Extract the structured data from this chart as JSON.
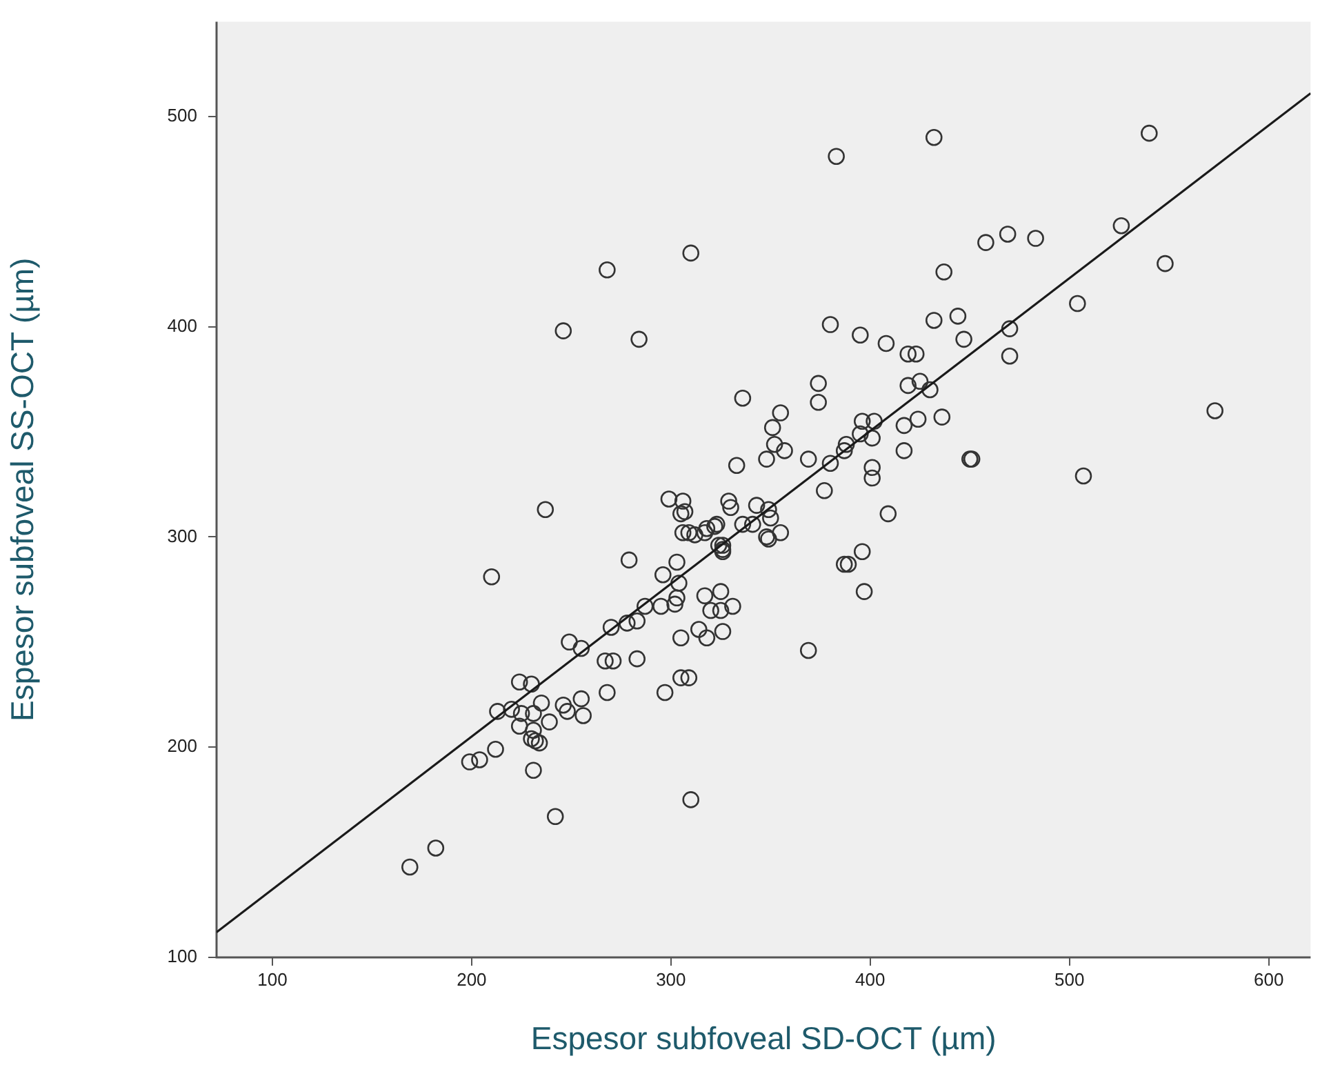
{
  "chart_data": {
    "type": "scatter",
    "xlabel": "Espesor subfoveal SD-OCT (µm)",
    "ylabel": "Espesor subfoveal SS-OCT (µm)",
    "xlim": [
      72,
      621
    ],
    "ylim": [
      100,
      545
    ],
    "xticks": [
      100,
      200,
      300,
      400,
      500,
      600
    ],
    "yticks": [
      100,
      200,
      300,
      400,
      500
    ],
    "grid": false,
    "legend": false,
    "marker": "circle",
    "series": [
      {
        "color": "#333333",
        "x": [
          383,
          432,
          540,
          526,
          548,
          268,
          310,
          246,
          284,
          237,
          210,
          310,
          242,
          169,
          182,
          573,
          507,
          458,
          469,
          483,
          504,
          470,
          470,
          437,
          432,
          444,
          447,
          430,
          436,
          425,
          419,
          419,
          423,
          408,
          395,
          380,
          402,
          396,
          401,
          395,
          388,
          387,
          417,
          417,
          424,
          401,
          401,
          450,
          451,
          409,
          377,
          380,
          374,
          374,
          369,
          355,
          351,
          352,
          348,
          357,
          369,
          397,
          387,
          389,
          396,
          336,
          333,
          329,
          330,
          343,
          349,
          350,
          355,
          348,
          349,
          318,
          322,
          312,
          306,
          306,
          299,
          305,
          324,
          326,
          199,
          204,
          212,
          231,
          224,
          230,
          213,
          220,
          225,
          224,
          231,
          235,
          239,
          231,
          232,
          234,
          230,
          246,
          248,
          255,
          256,
          249,
          255,
          268,
          267,
          271,
          283,
          270,
          278,
          283,
          279,
          287,
          295,
          302,
          303,
          304,
          296,
          303,
          305,
          297,
          305,
          309,
          314,
          318,
          326,
          317,
          325,
          320,
          325,
          331,
          309,
          317,
          323,
          326,
          326,
          336,
          341,
          307
        ],
        "values": [
          481,
          490,
          492,
          448,
          430,
          427,
          435,
          398,
          394,
          313,
          281,
          175,
          167,
          143,
          152,
          360,
          329,
          440,
          444,
          442,
          411,
          386,
          399,
          426,
          403,
          405,
          394,
          370,
          357,
          374,
          372,
          387,
          387,
          392,
          396,
          401,
          355,
          355,
          347,
          349,
          344,
          341,
          353,
          341,
          356,
          333,
          328,
          337,
          337,
          311,
          322,
          335,
          373,
          364,
          246,
          359,
          352,
          344,
          337,
          341,
          337,
          274,
          287,
          287,
          293,
          366,
          334,
          317,
          314,
          315,
          313,
          309,
          302,
          300,
          299,
          304,
          305,
          301,
          302,
          317,
          318,
          311,
          296,
          294,
          193,
          194,
          199,
          189,
          231,
          230,
          217,
          218,
          216,
          210,
          216,
          221,
          212,
          208,
          203,
          202,
          204,
          220,
          217,
          223,
          215,
          250,
          247,
          226,
          241,
          241,
          242,
          257,
          259,
          260,
          289,
          267,
          267,
          268,
          271,
          278,
          282,
          288,
          252,
          226,
          233,
          233,
          256,
          252,
          255,
          272,
          274,
          265,
          265,
          267,
          302,
          302,
          306,
          296,
          293,
          306,
          306,
          312
        ]
      },
      {
        "type": "line",
        "color": "#1a1a1a",
        "x": [
          72,
          621
        ],
        "values": [
          112,
          511
        ],
        "marker": "none",
        "line_style": "solid"
      }
    ]
  }
}
